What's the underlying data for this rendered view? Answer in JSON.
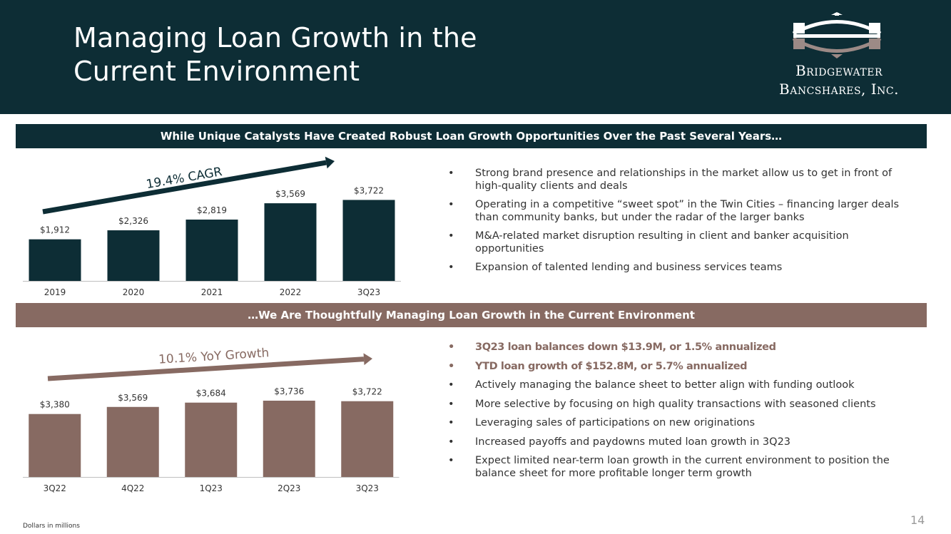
{
  "slide": {
    "title_line1": "Managing Loan Growth in the",
    "title_line2": "Current Environment",
    "footnote": "Dollars in millions",
    "page_number": "14",
    "colors": {
      "dark": "#0d2d35",
      "taupe": "#876a62",
      "logo_arc": "#9c8a86"
    }
  },
  "logo": {
    "line1": "Bridgewater",
    "line2": "Bancshares, Inc."
  },
  "section1": {
    "banner": "While Unique Catalysts Have Created Robust Loan Growth Opportunities Over the Past Several Years…",
    "bullets": [
      "Strong brand presence and relationships in the market allow us to get in front of high-quality clients and deals",
      "Operating in a competitive “sweet spot” in the Twin Cities – financing larger deals than community banks, but under the radar of the larger banks",
      "M&A-related market disruption resulting in client and banker acquisition opportunities",
      "Expansion of talented lending and business services teams"
    ]
  },
  "section2": {
    "banner": "…We Are Thoughtfully Managing Loan Growth in the Current Environment",
    "bullets_highlight": [
      "3Q23 loan balances down $13.9M, or 1.5% annualized",
      "YTD loan growth of $152.8M, or 5.7% annualized"
    ],
    "bullets": [
      "Actively managing the balance sheet to better align with funding outlook",
      "More selective by focusing on high quality transactions with seasoned clients",
      "Leveraging sales of participations on new originations",
      "Increased payoffs and paydowns muted loan growth in 3Q23",
      "Expect limited near-term loan growth in the current environment to position the balance sheet for more profitable longer term growth"
    ]
  },
  "bullet_glyph": "•",
  "chart_data": [
    {
      "type": "bar",
      "categories": [
        "2019",
        "2020",
        "2021",
        "2022",
        "3Q23"
      ],
      "values": [
        1912,
        2326,
        2819,
        3569,
        3722
      ],
      "value_labels": [
        "$1,912",
        "$2,326",
        "$2,819",
        "$3,569",
        "$3,722"
      ],
      "annotation": "19.4% CAGR",
      "ylim": [
        0,
        3900
      ],
      "color": "#0d2d35"
    },
    {
      "type": "bar",
      "categories": [
        "3Q22",
        "4Q22",
        "1Q23",
        "2Q23",
        "3Q23"
      ],
      "values": [
        3380,
        3569,
        3684,
        3736,
        3722
      ],
      "value_labels": [
        "$3,380",
        "$3,569",
        "$3,684",
        "$3,736",
        "$3,722"
      ],
      "annotation": "10.1% YoY Growth",
      "ylim": [
        1700,
        3850
      ],
      "color": "#876a62"
    }
  ]
}
